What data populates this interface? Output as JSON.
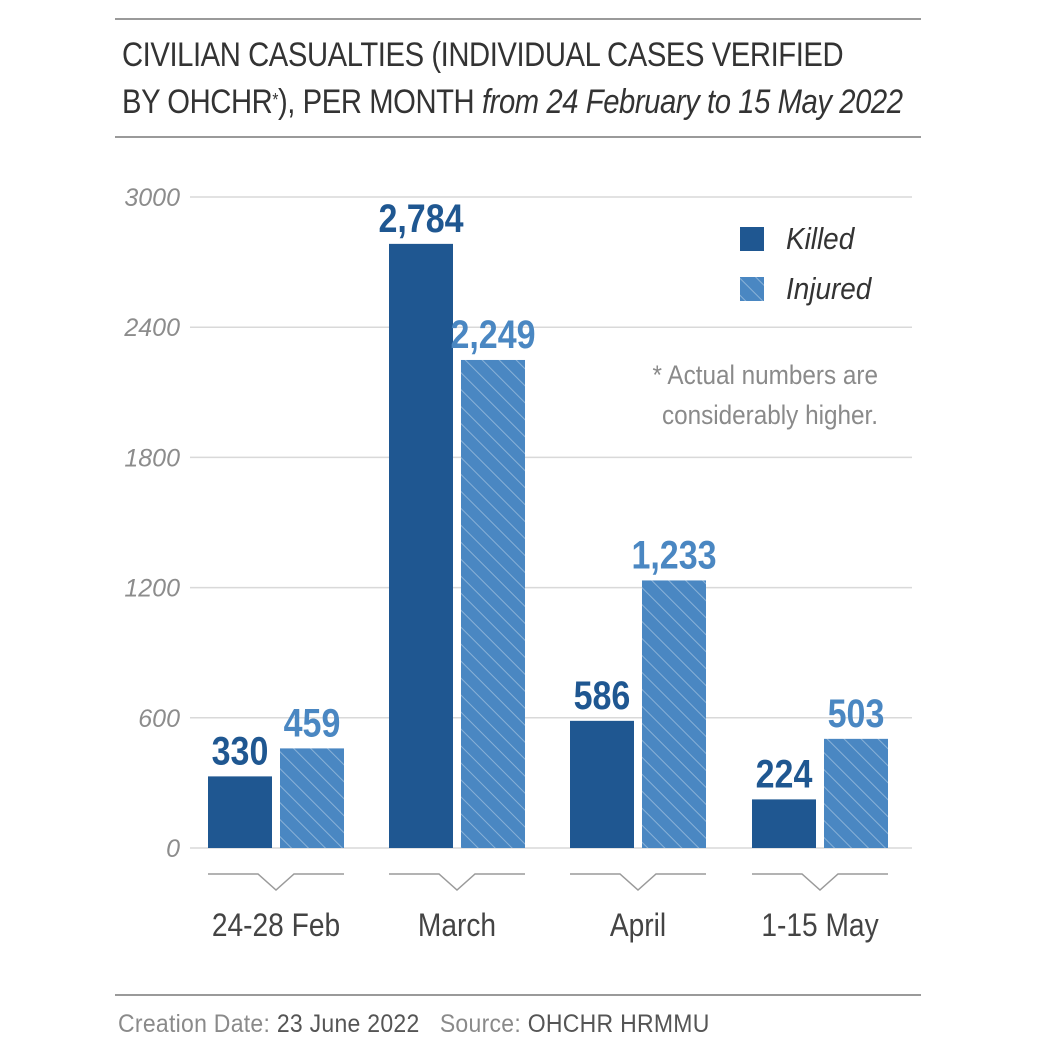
{
  "header": {
    "title_main": "CIVILIAN CASUALTIES (INDIVIDUAL CASES VERIFIED",
    "title_line2": "BY OHCHR",
    "title_star": "*",
    "title_line2_end": "), PER MONTH",
    "title_sub": "from 24 February to 15 May 2022"
  },
  "note": {
    "line1": "* Actual numbers are",
    "line2": "considerably higher."
  },
  "footer": {
    "creation_label": "Creation Date:",
    "creation_value": "23 June 2022",
    "source_label": "Source:",
    "source_value": "OHCHR HRMMU"
  },
  "colors": {
    "killed": "#1f5791",
    "injured": "#4a87c2",
    "grid": "#d9d9d9",
    "axis_text": "#8c8c8c"
  },
  "chart_data": {
    "type": "bar",
    "categories": [
      "24-28 Feb",
      "March",
      "April",
      "1-15 May"
    ],
    "series": [
      {
        "name": "Killed",
        "values": [
          330,
          2784,
          586,
          224
        ],
        "labels": [
          "330",
          "2,784",
          "586",
          "224"
        ]
      },
      {
        "name": "Injured",
        "values": [
          459,
          2249,
          1233,
          503
        ],
        "labels": [
          "459",
          "2,249",
          "1,233",
          "503"
        ]
      }
    ],
    "ylim": [
      0,
      3000
    ],
    "yticks": [
      0,
      600,
      1200,
      1800,
      2400,
      3000
    ],
    "grid": true,
    "legend_position": "top-right"
  }
}
